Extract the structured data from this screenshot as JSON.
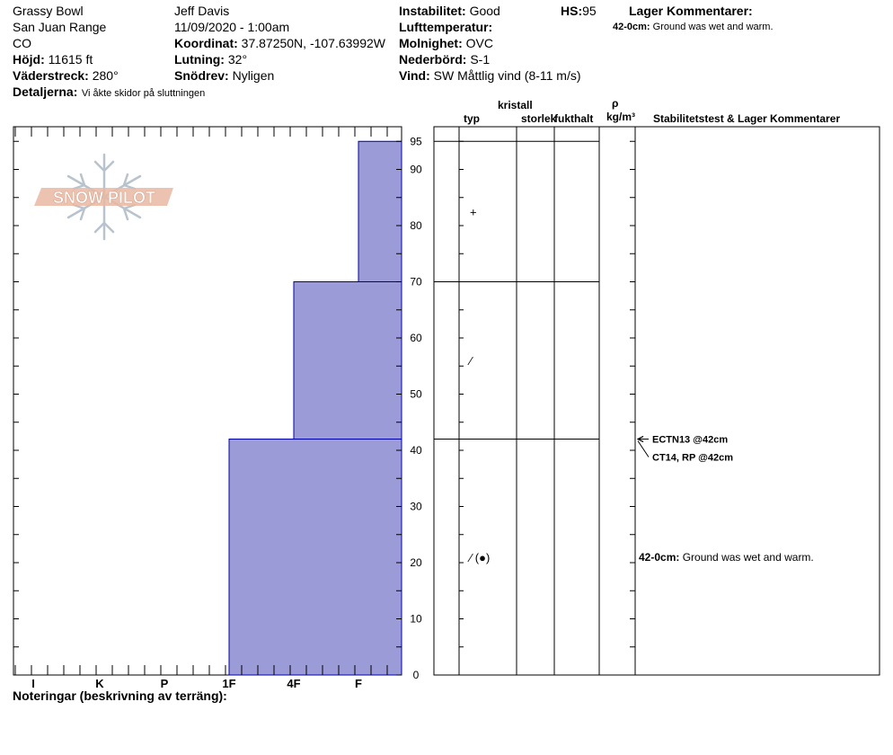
{
  "header": {
    "location": "Grassy Bowl",
    "range": "San Juan Range",
    "state": "CO",
    "elevation": {
      "label": "Höjd:",
      "value": "11615 ft"
    },
    "aspect": {
      "label": "Väderstreck:",
      "value": "280°"
    },
    "details": {
      "label": "Detaljerna:",
      "value": "Vi åkte skidor på sluttningen"
    },
    "observer": "Jeff Davis",
    "datetime": "11/09/2020 - 1:00am",
    "coordinates": {
      "label": "Koordinat:",
      "value": "37.87250N, -107.63992W"
    },
    "slope": {
      "label": "Lutning:",
      "value": "32°"
    },
    "drift": {
      "label": "Snödrev:",
      "value": "Nyligen"
    },
    "instability": {
      "label": "Instabilitet:",
      "value": "Good"
    },
    "air_temp": {
      "label": "Lufttemperatur:",
      "value": ""
    },
    "sky": {
      "label": "Molnighet:",
      "value": "OVC"
    },
    "precip": {
      "label": "Nederbörd:",
      "value": "S-1"
    },
    "wind": {
      "label": "Vind:",
      "value": "SW  Måttlig vind (8-11 m/s)"
    },
    "hs": {
      "label": "HS:",
      "value": "95"
    },
    "layer_comments": {
      "title": "Lager Kommentarer:",
      "items": [
        {
          "range": "42-0cm:",
          "text": "Ground was wet and warm."
        }
      ]
    }
  },
  "logo": {
    "text": "SNOW PILOT"
  },
  "columns": {
    "crystal": "kristall",
    "type": "typ",
    "size": "storlek",
    "moisture": "fukthalt",
    "rho": "ρ",
    "density_unit": "kg/m³",
    "stability": "Stabilitetstest & Lager Kommentarer"
  },
  "footer": {
    "notes_label": "Noteringar (beskrivning av terräng):"
  },
  "chart_data": {
    "type": "bar",
    "title": "",
    "ylabel": "",
    "ylim": [
      0,
      97
    ],
    "y_ticks": [
      0,
      10,
      20,
      30,
      40,
      50,
      60,
      70,
      80,
      90,
      95
    ],
    "hardness_scale": [
      "I",
      "K",
      "P",
      "1F",
      "4F",
      "F"
    ],
    "layers": [
      {
        "bottom": 0,
        "top": 42,
        "hardness": "1F",
        "grain": "⁄ (●)"
      },
      {
        "bottom": 42,
        "top": 70,
        "hardness": "4F",
        "grain": "⁄"
      },
      {
        "bottom": 70,
        "top": 95,
        "hardness": "F",
        "grain": "+"
      }
    ],
    "stability_tests": [
      {
        "depth": 42,
        "text": "ECTN13 @42cm"
      },
      {
        "depth": 42,
        "text": "CT14, RP @42cm"
      }
    ],
    "layer_comments": [
      {
        "depth": 21,
        "range": "42-0cm:",
        "text": "Ground was wet and warm."
      }
    ],
    "colors": {
      "bar_fill": "#9b9bd7",
      "bar_stroke": "#0000aa",
      "logo": "#e9b9a3",
      "snowflake": "#b9c3cd"
    }
  }
}
